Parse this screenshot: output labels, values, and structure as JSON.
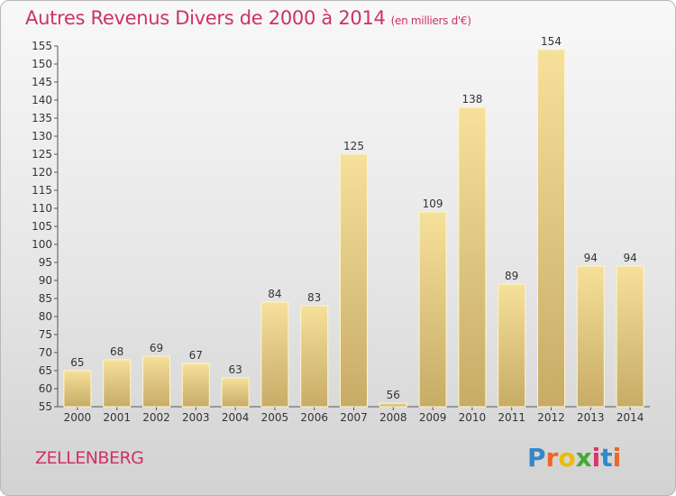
{
  "title": "Autres Revenus Divers de 2000 à 2014",
  "unit": "(en milliers d'€)",
  "footer": {
    "town": "ZELLENBERG",
    "logo_text": "Proxiti"
  },
  "colors": {
    "title": "#cc3366",
    "bar_top": "#f6e09a",
    "bar_bottom": "#c7ac66",
    "logo": [
      "#3388cc",
      "#ee6622",
      "#eebb00",
      "#44aa33",
      "#dd3366",
      "#3388cc",
      "#ee6622"
    ]
  },
  "chart_data": {
    "type": "bar",
    "categories": [
      "2000",
      "2001",
      "2002",
      "2003",
      "2004",
      "2005",
      "2006",
      "2007",
      "2008",
      "2009",
      "2010",
      "2011",
      "2012",
      "2013",
      "2014"
    ],
    "values": [
      65,
      68,
      69,
      67,
      63,
      84,
      83,
      125,
      56,
      109,
      138,
      89,
      154,
      94,
      94
    ],
    "ylim": [
      55,
      155
    ],
    "yticks": [
      55,
      60,
      65,
      70,
      75,
      80,
      85,
      90,
      95,
      100,
      105,
      110,
      115,
      120,
      125,
      130,
      135,
      140,
      145,
      150,
      155
    ],
    "grid": false,
    "data_labels": true
  }
}
